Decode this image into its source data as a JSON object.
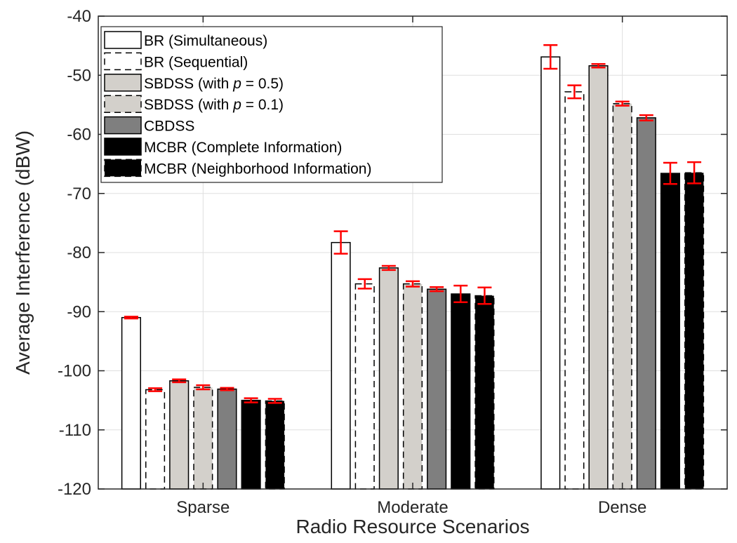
{
  "chart_data": {
    "type": "bar",
    "xlabel": "Radio Resource Scenarios",
    "ylabel": "Average Interference (dBW)",
    "ylim": [
      -120,
      -40
    ],
    "yticks": [
      -40,
      -50,
      -60,
      -70,
      -80,
      -90,
      -100,
      -110,
      -120
    ],
    "grid": true,
    "legend_position": "top-left",
    "categories": [
      "Sparse",
      "Moderate",
      "Dense"
    ],
    "error_bar_color": "#ff0000",
    "series": [
      {
        "name": "BR (Simultaneous)",
        "values": [
          -91.0,
          -78.3,
          -46.9
        ],
        "errors": [
          0.15,
          1.9,
          2.0
        ],
        "fill": "#ffffff",
        "dashed": false
      },
      {
        "name": "BR (Sequential)",
        "values": [
          -103.2,
          -85.3,
          -52.8
        ],
        "errors": [
          0.25,
          0.8,
          1.1
        ],
        "fill": "#ffffff",
        "dashed": true
      },
      {
        "name": "SBDSS (with p = 0.5)",
        "name_parts": [
          "SBDSS (with ",
          "p",
          " = 0.5)"
        ],
        "values": [
          -101.7,
          -82.6,
          -48.4
        ],
        "errors": [
          0.25,
          0.35,
          0.3
        ],
        "fill": "#d3d0cb",
        "dashed": false
      },
      {
        "name": "SBDSS (with p = 0.1)",
        "name_parts": [
          "SBDSS (with ",
          "p",
          " = 0.1)"
        ],
        "values": [
          -102.8,
          -85.3,
          -54.8
        ],
        "errors": [
          0.35,
          0.45,
          0.35
        ],
        "fill": "#d3d0cb",
        "dashed": true
      },
      {
        "name": "CBDSS",
        "values": [
          -103.1,
          -86.2,
          -57.2
        ],
        "errors": [
          0.2,
          0.35,
          0.45
        ],
        "fill": "#7f7f7f",
        "dashed": false
      },
      {
        "name": "MCBR (Complete Information)",
        "values": [
          -105.0,
          -87.0,
          -66.6
        ],
        "errors": [
          0.35,
          1.4,
          1.8
        ],
        "fill": "#000000",
        "dashed": false
      },
      {
        "name": "MCBR (Neighborhood Information)",
        "values": [
          -105.1,
          -87.3,
          -66.5
        ],
        "errors": [
          0.35,
          1.4,
          1.8
        ],
        "fill": "#000000",
        "dashed": true
      }
    ]
  }
}
